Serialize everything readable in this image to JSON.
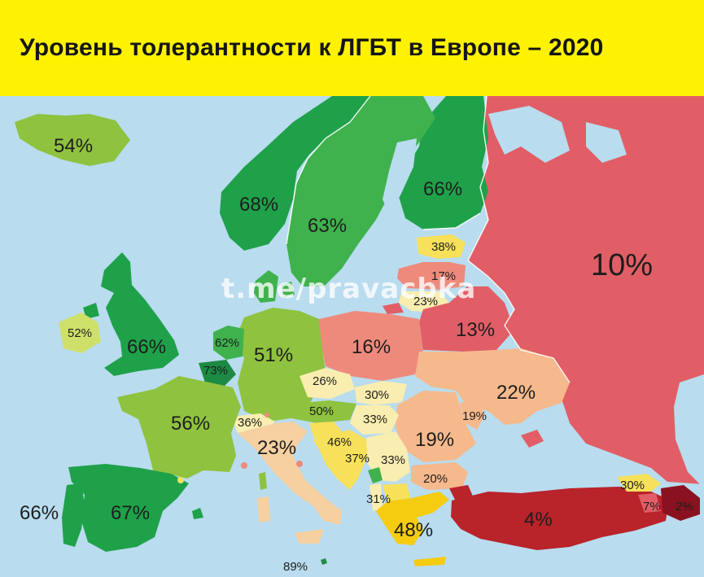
{
  "title": "Уровень толерантности к ЛГБТ в Европе – 2020",
  "watermark": "t.me/pravacbka",
  "colors": {
    "header": "#fff200",
    "sea": "#b9dcef",
    "dark_green": "#1fa14a",
    "green": "#3fb24d",
    "light_green": "#8fc23f",
    "yellow_green": "#cfe06a",
    "yellow": "#f7e15a",
    "pale_yellow": "#f9eeb0",
    "peach": "#f6b98c",
    "salmon": "#ee8a7c",
    "red": "#e15e66",
    "dark_red": "#b9232a"
  },
  "countries": [
    {
      "name": "Iceland",
      "value": "54%"
    },
    {
      "name": "Norway",
      "value": "68%"
    },
    {
      "name": "Sweden",
      "value": "63%"
    },
    {
      "name": "Finland",
      "value": "66%"
    },
    {
      "name": "Russia",
      "value": "10%"
    },
    {
      "name": "Estonia",
      "value": "38%"
    },
    {
      "name": "Latvia",
      "value": "17%"
    },
    {
      "name": "Lithuania",
      "value": "23%"
    },
    {
      "name": "Belarus",
      "value": "13%"
    },
    {
      "name": "Ireland",
      "value": "52%"
    },
    {
      "name": "United Kingdom",
      "value": "66%"
    },
    {
      "name": "Netherlands",
      "value": "62%"
    },
    {
      "name": "Belgium",
      "value": "73%"
    },
    {
      "name": "Germany",
      "value": "51%"
    },
    {
      "name": "Poland",
      "value": "16%"
    },
    {
      "name": "Ukraine",
      "value": "22%"
    },
    {
      "name": "Czechia",
      "value": "26%"
    },
    {
      "name": "Slovakia",
      "value": "30%"
    },
    {
      "name": "Hungary",
      "value": "33%"
    },
    {
      "name": "Austria",
      "value": "50%"
    },
    {
      "name": "Switzerland",
      "value": "36%"
    },
    {
      "name": "France",
      "value": "56%"
    },
    {
      "name": "Italy",
      "value": "23%"
    },
    {
      "name": "Slovenia",
      "value": "46%"
    },
    {
      "name": "Croatia",
      "value": "37%"
    },
    {
      "name": "Serbia",
      "value": "33%"
    },
    {
      "name": "Romania",
      "value": "19%"
    },
    {
      "name": "Moldova",
      "value": "19%"
    },
    {
      "name": "Bulgaria",
      "value": "20%"
    },
    {
      "name": "North Macedonia",
      "value": "31%"
    },
    {
      "name": "Greece",
      "value": "48%"
    },
    {
      "name": "Turkey",
      "value": "4%"
    },
    {
      "name": "Georgia",
      "value": "30%"
    },
    {
      "name": "Armenia",
      "value": "7%"
    },
    {
      "name": "Azerbaijan",
      "value": "2%"
    },
    {
      "name": "Portugal",
      "value": "66%"
    },
    {
      "name": "Spain",
      "value": "67%"
    },
    {
      "name": "Malta",
      "value": "89%"
    }
  ]
}
